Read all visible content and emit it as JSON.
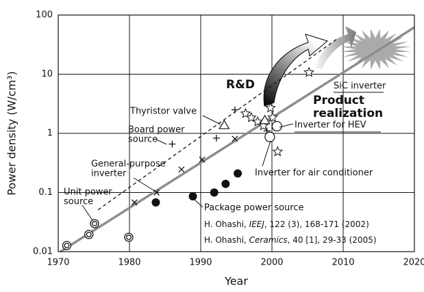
{
  "chart_data": {
    "type": "scatter",
    "xlabel": "Year",
    "ylabel": "Power density (W/cm³)",
    "xlim": [
      1970,
      2020
    ],
    "xticks": [
      1970,
      1980,
      1990,
      2000,
      2010,
      2020
    ],
    "ylim": [
      0.01,
      100
    ],
    "yticks": [
      0.01,
      0.1,
      1,
      10,
      100
    ],
    "ylog": true,
    "grid": true,
    "series": [
      {
        "marker": "double-circle",
        "color": "#111111",
        "x": [
          1971.2,
          1974.3,
          1975.1,
          1979.9
        ],
        "values": [
          0.0127,
          0.0195,
          0.0298,
          0.0175
        ]
      },
      {
        "marker": "cross",
        "color": "#111111",
        "x": [
          1980.7,
          1983.8,
          1987.3,
          1990.2,
          1994.8
        ],
        "values": [
          0.068,
          0.1,
          0.245,
          0.36,
          0.81
        ]
      },
      {
        "marker": "plus",
        "color": "#111111",
        "x": [
          1986.0,
          1992.2,
          1994.8,
          1999.3
        ],
        "values": [
          0.66,
          0.83,
          2.5,
          1.1
        ]
      },
      {
        "marker": "dot",
        "color": "#111111",
        "x": [
          1983.7,
          1988.9,
          1991.9,
          1993.5,
          1995.2
        ],
        "values": [
          0.068,
          0.086,
          0.1,
          0.14,
          0.21
        ]
      },
      {
        "marker": "star",
        "color": "#111111",
        "x": [
          2005.2,
          1996.3,
          1997.1,
          1998.0,
          1998.8,
          1999.8,
          2000.1,
          2000.8
        ],
        "values": [
          10.7,
          2.16,
          1.84,
          1.57,
          1.34,
          2.7,
          1.85,
          0.49
        ]
      },
      {
        "marker": "circle",
        "color": "#111111",
        "x": [
          1999.7,
          2000.7
        ],
        "values": [
          0.87,
          1.32
        ]
      },
      {
        "marker": "triangle",
        "color": "#111111",
        "x": [
          1993.3,
          1999.0
        ],
        "values": [
          1.37,
          1.66
        ]
      },
      {
        "marker": "dashed-line",
        "color": "#111111",
        "x": [
          1975.6,
          2009.4
        ],
        "values": [
          0.051,
          41.6
        ]
      },
      {
        "marker": "solid-line",
        "color": "#8c8c8c",
        "x": [
          1970.3,
          2020
        ],
        "values": [
          0.01,
          62
        ]
      }
    ],
    "annotations": {
      "rd": "R&D",
      "sic": "SiC inverter",
      "product": [
        "Product",
        "realization"
      ],
      "thyristor": "Thyristor valve",
      "board": [
        "Board power",
        "source"
      ],
      "hev": "Inverter for HEV",
      "general": [
        "General-purpose",
        "inverter"
      ],
      "aircon": "Inverter for air conditioner",
      "unit": [
        "Unit power",
        "source"
      ],
      "package": "Package power source",
      "ref1": [
        "H. Ohashi, ",
        "IEEJ",
        ", 122 (3), 168-171 (2002)"
      ],
      "ref2": [
        "H. Ohashi, ",
        "Ceramics",
        ", 40 [1], 29-33 (2005)"
      ]
    }
  }
}
